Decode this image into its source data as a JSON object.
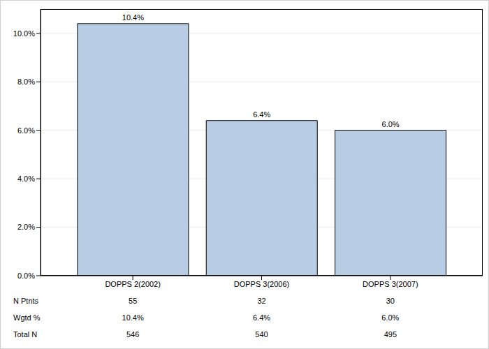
{
  "chart_data": {
    "type": "bar",
    "categories": [
      "DOPPS 2(2002)",
      "DOPPS 3(2006)",
      "DOPPS 3(2007)"
    ],
    "values": [
      10.4,
      6.4,
      6.0
    ],
    "value_labels": [
      "10.4%",
      "6.4%",
      "6.0%"
    ],
    "data_labels": true,
    "color": "#b8cce4",
    "ylim": [
      0,
      11
    ],
    "yticks": [
      {
        "value": 0,
        "label": "0.0%"
      },
      {
        "value": 2,
        "label": "2.0%"
      },
      {
        "value": 4,
        "label": "4.0%"
      },
      {
        "value": 6,
        "label": "6.0%"
      },
      {
        "value": 8,
        "label": "8.0%"
      },
      {
        "value": 10,
        "label": "10.0%"
      }
    ],
    "grid": true
  },
  "table": {
    "rows": [
      {
        "label": "N Ptnts",
        "cells": [
          "55",
          "32",
          "30"
        ]
      },
      {
        "label": "Wgtd %",
        "cells": [
          "10.4%",
          "6.4%",
          "6.0%"
        ]
      },
      {
        "label": "Total N",
        "cells": [
          "546",
          "540",
          "495"
        ]
      }
    ]
  }
}
